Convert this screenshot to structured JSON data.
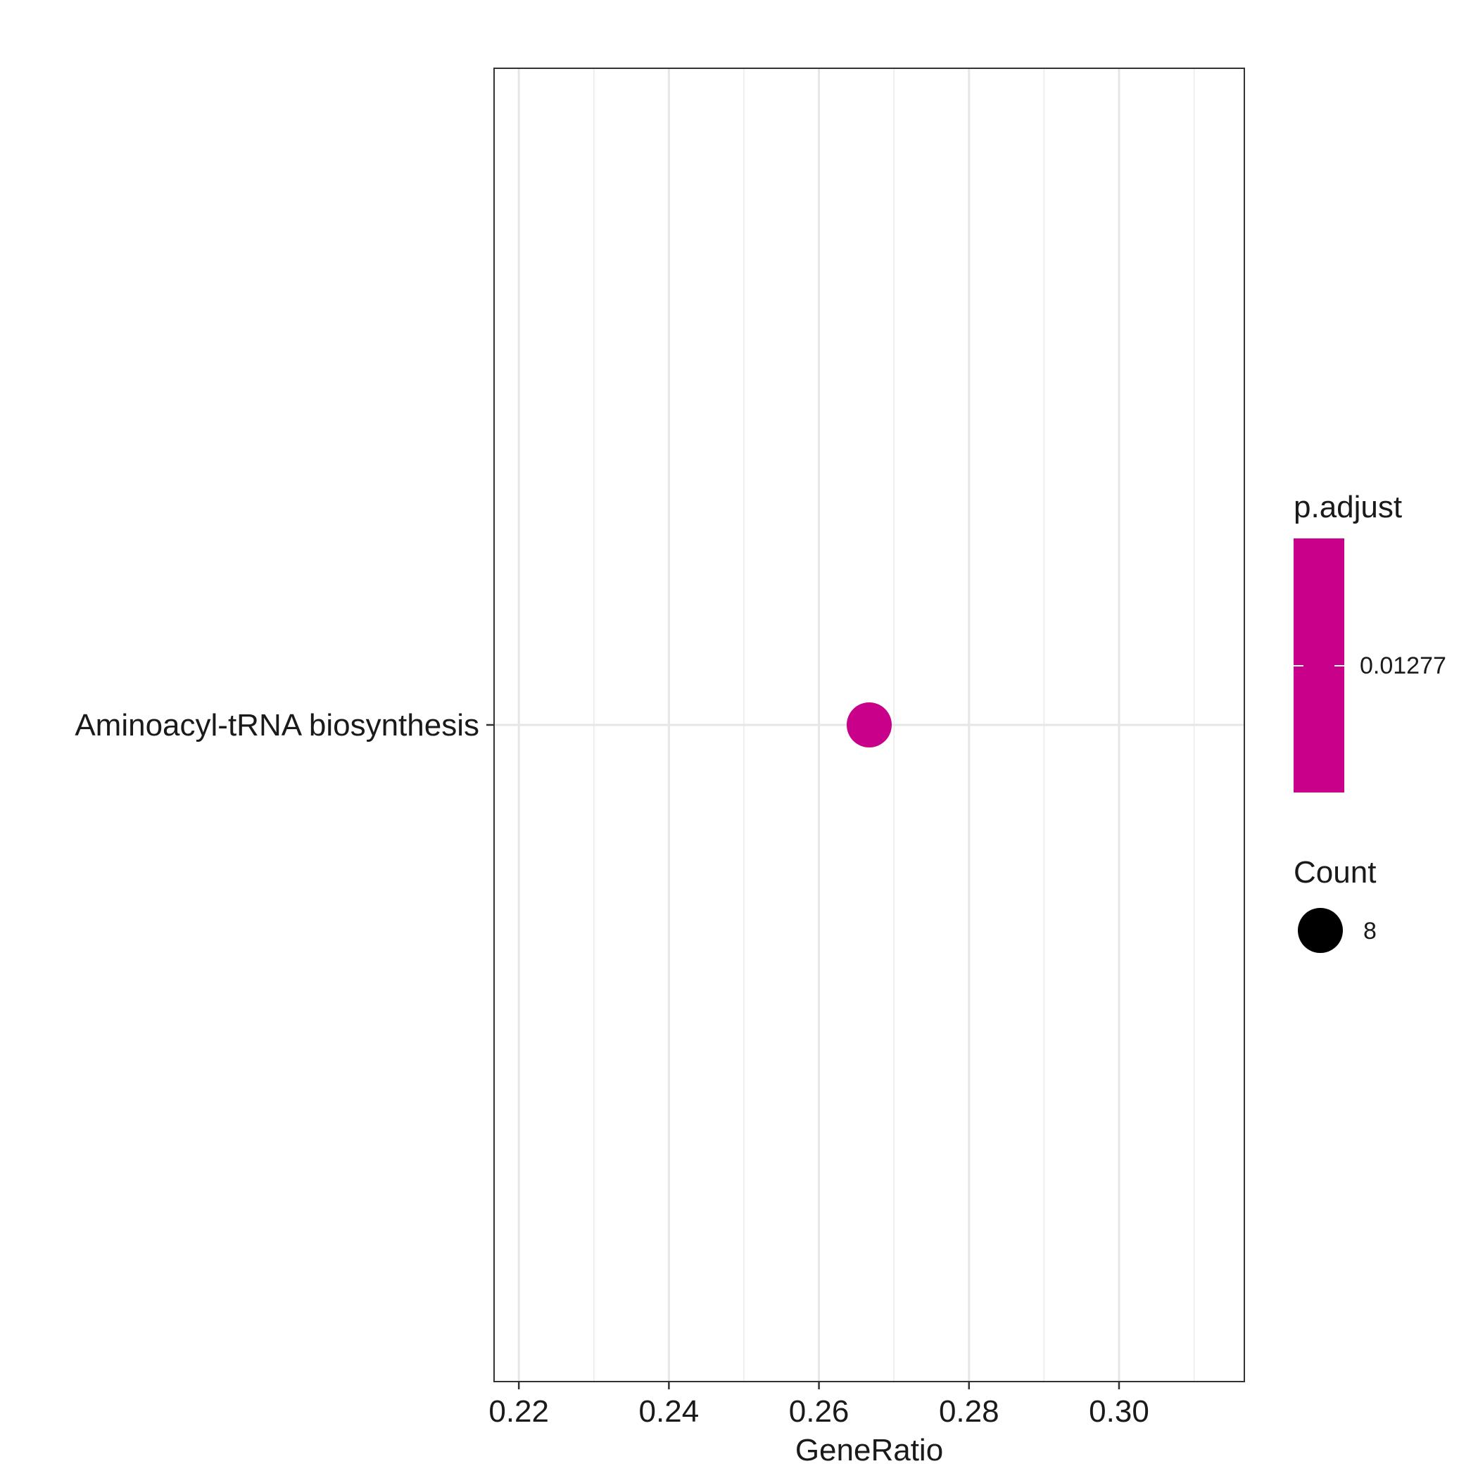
{
  "chart_data": {
    "type": "scatter",
    "title": "",
    "xlabel": "GeneRatio",
    "ylabel": "",
    "x_ticks": [
      "0.22",
      "0.24",
      "0.26",
      "0.28",
      "0.30"
    ],
    "x_tick_values": [
      0.22,
      0.24,
      0.26,
      0.28,
      0.3
    ],
    "xlim": [
      0.2167,
      0.3167
    ],
    "categories": [
      "Aminoacyl-tRNA biosynthesis"
    ],
    "points": [
      {
        "category": "Aminoacyl-tRNA biosynthesis",
        "x": 0.2667,
        "count": 8,
        "p_adjust": 0.01277
      }
    ],
    "grid": true,
    "legend_placement": "right",
    "legends": {
      "color": {
        "title": "p.adjust",
        "label": "0.01277",
        "color": "#c8008a"
      },
      "size": {
        "title": "Count",
        "label": "8",
        "color": "#000000"
      }
    }
  }
}
